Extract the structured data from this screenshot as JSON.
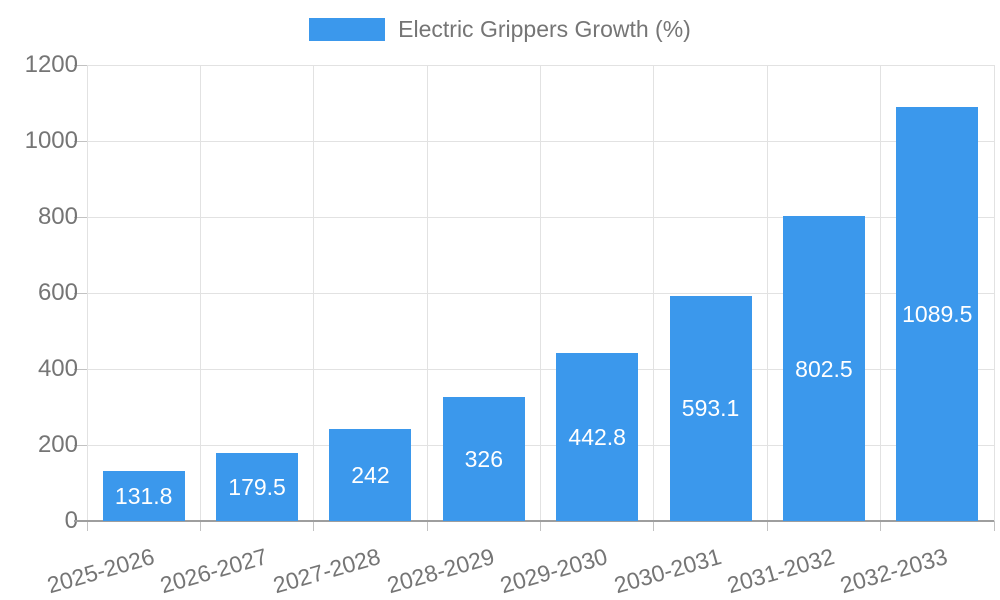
{
  "chart_data": {
    "type": "bar",
    "title": "Electric Grippers Growth (%)",
    "legend": {
      "position": "top",
      "label": "Electric Grippers Growth (%)"
    },
    "categories": [
      "2025-2026",
      "2026-2027",
      "2027-2028",
      "2028-2029",
      "2029-2030",
      "2030-2031",
      "2031-2032",
      "2032-2033"
    ],
    "series": [
      {
        "name": "Electric Grippers Growth (%)",
        "values": [
          131.8,
          179.5,
          242,
          326,
          442.8,
          593.1,
          802.5,
          1089.5
        ],
        "value_labels": [
          "131.8",
          "179.5",
          "242",
          "326",
          "442.8",
          "593.1",
          "802.5",
          "1089.5"
        ]
      }
    ],
    "xlabel": "",
    "ylabel": "",
    "ylim": [
      0,
      1200
    ],
    "yticks": [
      0,
      200,
      400,
      600,
      800,
      1000,
      1200
    ],
    "grid": true,
    "colors": {
      "bar": "#3b98ec",
      "grid": "#e2e2e2",
      "tick": "#c2c2c2",
      "baseline": "#9e9e9e",
      "axis_text": "#757575",
      "value_text": "#ffffff",
      "background": "#ffffff"
    }
  }
}
